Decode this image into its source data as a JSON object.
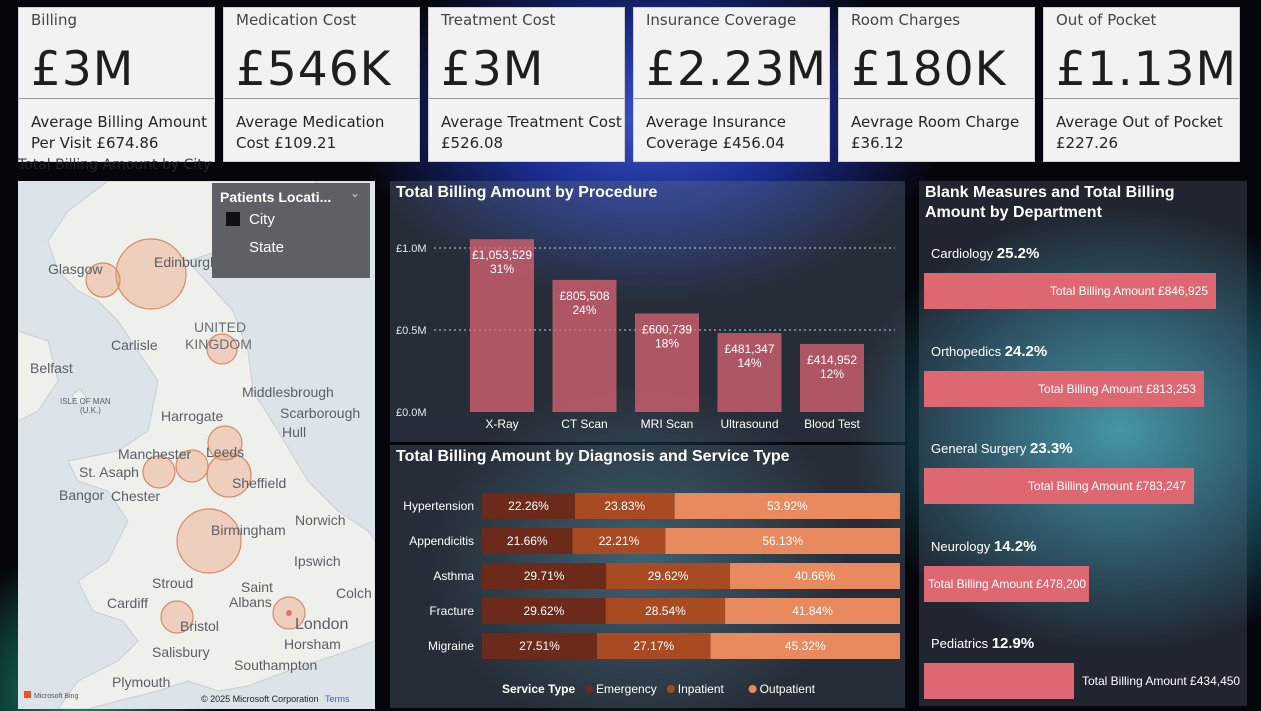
{
  "cards": [
    {
      "title": "Billing",
      "value": "£3M",
      "sub": "Average Billing Amount Per Visit £674.86"
    },
    {
      "title": "Medication Cost",
      "value": "£546K",
      "sub": "Average Medication Cost £109.21"
    },
    {
      "title": "Treatment Cost",
      "value": "£3M",
      "sub": "Average Treatment Cost £526.08"
    },
    {
      "title": "Insurance Coverage",
      "value": "£2.23M",
      "sub": "Average Insurance Coverage £456.04"
    },
    {
      "title": "Room Charges",
      "value": "£180K",
      "sub": "Aevrage Room Charge £36.12"
    },
    {
      "title": "Out of Pocket",
      "value": "£1.13M",
      "sub": "Average Out of Pocket £227.26"
    }
  ],
  "map": {
    "title": "Total Billing Amount by City",
    "legend_title": "Patients Locati...",
    "legend_items": [
      "City",
      "State"
    ],
    "labels": {
      "country_line1": "UNITED",
      "country_line2": "KINGDOM",
      "isle": "ISLE OF MAN",
      "isle_sub": "(U.K.)",
      "glasgow": "Glasgow",
      "edinburgh": "Edinburgh",
      "carlisle": "Carlisle",
      "belfast": "Belfast",
      "middlesbrough": "Middlesbrough",
      "harrogate": "Harrogate",
      "scarborough": "Scarborough",
      "hull": "Hull",
      "manchester": "Manchester",
      "leeds": "Leeds",
      "st_asaph": "St. Asaph",
      "sheffield": "Sheffield",
      "bangor": "Bangor",
      "chester": "Chester",
      "norwich": "Norwich",
      "birmingham": "Birmingham",
      "ipswich": "Ipswich",
      "stroud": "Stroud",
      "saint": "Saint",
      "albans": "Albans",
      "colch": "Colch",
      "cardiff": "Cardiff",
      "bristol": "Bristol",
      "london": "London",
      "horsham": "Horsham",
      "salisbury": "Salisbury",
      "southampton": "Southampton",
      "plymouth": "Plymouth"
    },
    "bing": "Microsoft Bing",
    "copyright": "© 2025 Microsoft Corporation",
    "terms": "Terms"
  },
  "chart_data": [
    {
      "type": "bar",
      "title": "Total Billing Amount by Procedure",
      "categories": [
        "X-Ray",
        "CT Scan",
        "MRI Scan",
        "Ultrasound",
        "Blood Test"
      ],
      "values": [
        1053529,
        805508,
        600739,
        481347,
        414952
      ],
      "value_labels": [
        "£1,053,529",
        "£805,508",
        "£600,739",
        "£481,347",
        "£414,952"
      ],
      "pct_labels": [
        "31%",
        "24%",
        "18%",
        "14%",
        "12%"
      ],
      "y_ticks": [
        "£0.0M",
        "£0.5M",
        "£1.0M"
      ],
      "ylim": [
        0,
        1000000
      ]
    },
    {
      "type": "bar",
      "title": "Total Billing Amount by Diagnosis and Service Type",
      "categories": [
        "Hypertension",
        "Appendicitis",
        "Asthma",
        "Fracture",
        "Migraine"
      ],
      "series": [
        {
          "name": "Emergency",
          "values": [
            22.26,
            21.66,
            29.71,
            29.62,
            27.51
          ]
        },
        {
          "name": "Inpatient",
          "values": [
            23.83,
            22.21,
            29.62,
            28.54,
            27.17
          ]
        },
        {
          "name": "Outpatient",
          "values": [
            53.92,
            56.13,
            40.66,
            41.84,
            45.32
          ]
        }
      ],
      "legend_title": "Service Type",
      "colors": [
        "#6b2a1a",
        "#a84a22",
        "#e88a5e"
      ]
    },
    {
      "type": "bar",
      "title": "Blank Measures and Total Billing Amount by Department",
      "categories": [
        "Cardiology",
        "Orthopedics",
        "General Surgery",
        "Neurology",
        "Pediatrics"
      ],
      "pct_labels": [
        "25.2%",
        "24.2%",
        "23.3%",
        "14.2%",
        "12.9%"
      ],
      "values": [
        846925,
        813253,
        783247,
        478200,
        434450
      ],
      "value_labels": [
        "Total Billing Amount £846,925",
        "Total Billing Amount £813,253",
        "Total Billing Amount £783,247",
        "Total Billing Amount £478,200",
        "Total Billing Amount £434,450"
      ],
      "color": "#dd6872"
    }
  ]
}
